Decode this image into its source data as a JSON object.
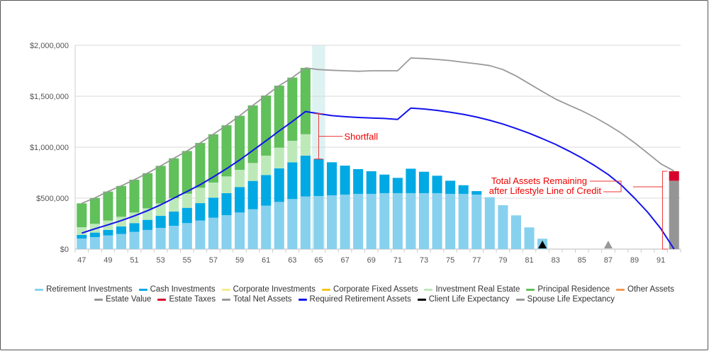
{
  "chart_data": {
    "type": "bar",
    "stacked": true,
    "ylim": [
      0,
      2000000
    ],
    "grid": true,
    "legend": "bottom",
    "y_ticks": [
      "$0",
      "$500,000",
      "$1,000,000",
      "$1,500,000",
      "$2,000,000"
    ],
    "x_ticks": [
      "47",
      "49",
      "51",
      "53",
      "55",
      "57",
      "59",
      "61",
      "63",
      "65",
      "67",
      "69",
      "71",
      "73",
      "75",
      "77",
      "79",
      "81",
      "83",
      "85",
      "87",
      "89",
      "91"
    ],
    "categories": [
      47,
      48,
      49,
      50,
      51,
      52,
      53,
      54,
      55,
      56,
      57,
      58,
      59,
      60,
      61,
      62,
      63,
      64,
      65,
      66,
      67,
      68,
      69,
      70,
      71,
      72,
      73,
      74,
      75,
      76,
      77,
      78,
      79,
      80,
      81,
      82,
      83,
      84,
      85,
      86,
      87,
      88,
      89,
      90,
      91,
      92
    ],
    "series": [
      {
        "name": "Retirement Investments",
        "kind": "bar",
        "color": "#87d1ee",
        "values": [
          104000,
          118000,
          134000,
          148000,
          169000,
          188000,
          208000,
          229000,
          255000,
          280000,
          308000,
          333000,
          359000,
          391000,
          426000,
          463000,
          491000,
          516000,
          521000,
          528000,
          535000,
          542000,
          542000,
          549000,
          549000,
          549000,
          549000,
          549000,
          542000,
          542000,
          535000,
          509000,
          431000,
          331000,
          213000,
          102000,
          0,
          0,
          0,
          0,
          0,
          0,
          0,
          0,
          0,
          0
        ]
      },
      {
        "name": "Cash Investments",
        "kind": "bar",
        "color": "#00a9e4",
        "values": [
          35000,
          44000,
          54000,
          74000,
          86000,
          99000,
          118000,
          139000,
          150000,
          171000,
          197000,
          216000,
          250000,
          278000,
          301000,
          329000,
          361000,
          401000,
          363000,
          324000,
          284000,
          243000,
          222000,
          182000,
          150000,
          240000,
          210000,
          171000,
          129000,
          85000,
          34000,
          0,
          0,
          0,
          0,
          0,
          0,
          0,
          0,
          0,
          0,
          0,
          0,
          0,
          0,
          0
        ]
      },
      {
        "name": "Corporate Investments",
        "kind": "bar",
        "color": "#f7ec8c",
        "values": [
          0,
          0,
          0,
          0,
          0,
          0,
          0,
          0,
          0,
          0,
          0,
          0,
          0,
          0,
          0,
          0,
          0,
          0,
          0,
          0,
          0,
          0,
          0,
          0,
          0,
          0,
          0,
          0,
          0,
          0,
          0,
          0,
          0,
          0,
          0,
          0,
          0,
          0,
          0,
          0,
          0,
          0,
          0,
          0,
          0,
          0
        ]
      },
      {
        "name": "Corporate Fixed Assets",
        "kind": "bar",
        "color": "#f5c71a",
        "values": [
          0,
          0,
          0,
          0,
          0,
          0,
          0,
          0,
          0,
          0,
          0,
          0,
          0,
          0,
          0,
          0,
          0,
          0,
          0,
          0,
          0,
          0,
          0,
          0,
          0,
          0,
          0,
          0,
          0,
          0,
          0,
          0,
          0,
          0,
          0,
          0,
          0,
          0,
          0,
          0,
          0,
          0,
          0,
          0,
          0,
          0
        ]
      },
      {
        "name": "Investment Real Estate",
        "kind": "bar",
        "color": "#bde9b9",
        "values": [
          76000,
          86000,
          92000,
          95000,
          104000,
          113000,
          121000,
          132000,
          139000,
          151000,
          148000,
          164000,
          169000,
          176000,
          190000,
          203000,
          211000,
          210000,
          0,
          0,
          0,
          0,
          0,
          0,
          0,
          0,
          0,
          0,
          0,
          0,
          0,
          0,
          0,
          0,
          0,
          0,
          0,
          0,
          0,
          0,
          0,
          0,
          0,
          0,
          0,
          0
        ]
      },
      {
        "name": "Principal Residence",
        "kind": "bar",
        "color": "#60c05a",
        "values": [
          234000,
          254000,
          285000,
          303000,
          322000,
          345000,
          370000,
          391000,
          419000,
          440000,
          474000,
          502000,
          530000,
          565000,
          590000,
          609000,
          620000,
          651000,
          0,
          0,
          0,
          0,
          0,
          0,
          0,
          0,
          0,
          0,
          0,
          0,
          0,
          0,
          0,
          0,
          0,
          0,
          0,
          0,
          0,
          0,
          0,
          0,
          0,
          0,
          0,
          0
        ]
      },
      {
        "name": "Other Assets",
        "kind": "bar",
        "color": "#f29a52",
        "values": [
          0,
          0,
          0,
          0,
          0,
          0,
          0,
          0,
          0,
          0,
          0,
          0,
          0,
          0,
          0,
          0,
          0,
          0,
          0,
          0,
          0,
          0,
          0,
          0,
          0,
          0,
          0,
          0,
          0,
          0,
          0,
          0,
          0,
          0,
          0,
          0,
          0,
          0,
          0,
          0,
          0,
          0,
          0,
          0,
          0,
          0
        ]
      },
      {
        "name": "Estate Value",
        "kind": "bar",
        "color": "#959595",
        "values": [
          0,
          0,
          0,
          0,
          0,
          0,
          0,
          0,
          0,
          0,
          0,
          0,
          0,
          0,
          0,
          0,
          0,
          0,
          0,
          0,
          0,
          0,
          0,
          0,
          0,
          0,
          0,
          0,
          0,
          0,
          0,
          0,
          0,
          0,
          0,
          0,
          0,
          0,
          0,
          0,
          0,
          0,
          0,
          0,
          0,
          671000
        ]
      },
      {
        "name": "Estate Taxes",
        "kind": "bar",
        "color": "#d7002b",
        "values": [
          0,
          0,
          0,
          0,
          0,
          0,
          0,
          0,
          0,
          0,
          0,
          0,
          0,
          0,
          0,
          0,
          0,
          0,
          0,
          0,
          0,
          0,
          0,
          0,
          0,
          0,
          0,
          0,
          0,
          0,
          0,
          0,
          0,
          0,
          0,
          0,
          0,
          0,
          0,
          0,
          0,
          0,
          0,
          0,
          0,
          93000
        ]
      },
      {
        "name": "Total Net Assets",
        "kind": "line",
        "color": "#999999",
        "values": [
          449000,
          502000,
          565000,
          620000,
          681000,
          745000,
          817000,
          891000,
          963000,
          1042000,
          1127000,
          1215000,
          1308000,
          1410000,
          1507000,
          1604000,
          1683000,
          1778000,
          1762000,
          1755000,
          1750000,
          1745000,
          1750000,
          1750000,
          1750000,
          1875000,
          1870000,
          1861000,
          1850000,
          1833000,
          1819000,
          1801000,
          1762000,
          1699000,
          1623000,
          1546000,
          1472000,
          1414000,
          1356000,
          1292000,
          1218000,
          1137000,
          1044000,
          940000,
          836000,
          766000
        ]
      },
      {
        "name": "Required Retirement Assets",
        "kind": "line",
        "color": "#1212ee",
        "values": [
          157000,
          199000,
          238000,
          280000,
          326000,
          377000,
          435000,
          500000,
          565000,
          632000,
          708000,
          789000,
          875000,
          968000,
          1063000,
          1160000,
          1252000,
          1350000,
          1329000,
          1310000,
          1299000,
          1292000,
          1287000,
          1282000,
          1273000,
          1384000,
          1375000,
          1361000,
          1343000,
          1322000,
          1296000,
          1264000,
          1227000,
          1183000,
          1137000,
          1083000,
          1028000,
          963000,
          894000,
          817000,
          731000,
          627000,
          500000,
          361000,
          199000,
          0
        ]
      },
      {
        "name": "Client Life Expectancy",
        "kind": "marker",
        "color": "#000000",
        "age": 82
      },
      {
        "name": "Spouse Life Expectancy",
        "kind": "marker",
        "color": "#999999",
        "age": 87
      }
    ],
    "highlight_age": 65,
    "annotations": {
      "shortfall": {
        "label": "Shortfall",
        "age": 65,
        "from": 1329000,
        "to": 884000
      },
      "remaining": {
        "line1": "Total Assets Remaining",
        "line2": "after Lifestyle Line of Credit",
        "age": 92
      }
    }
  }
}
